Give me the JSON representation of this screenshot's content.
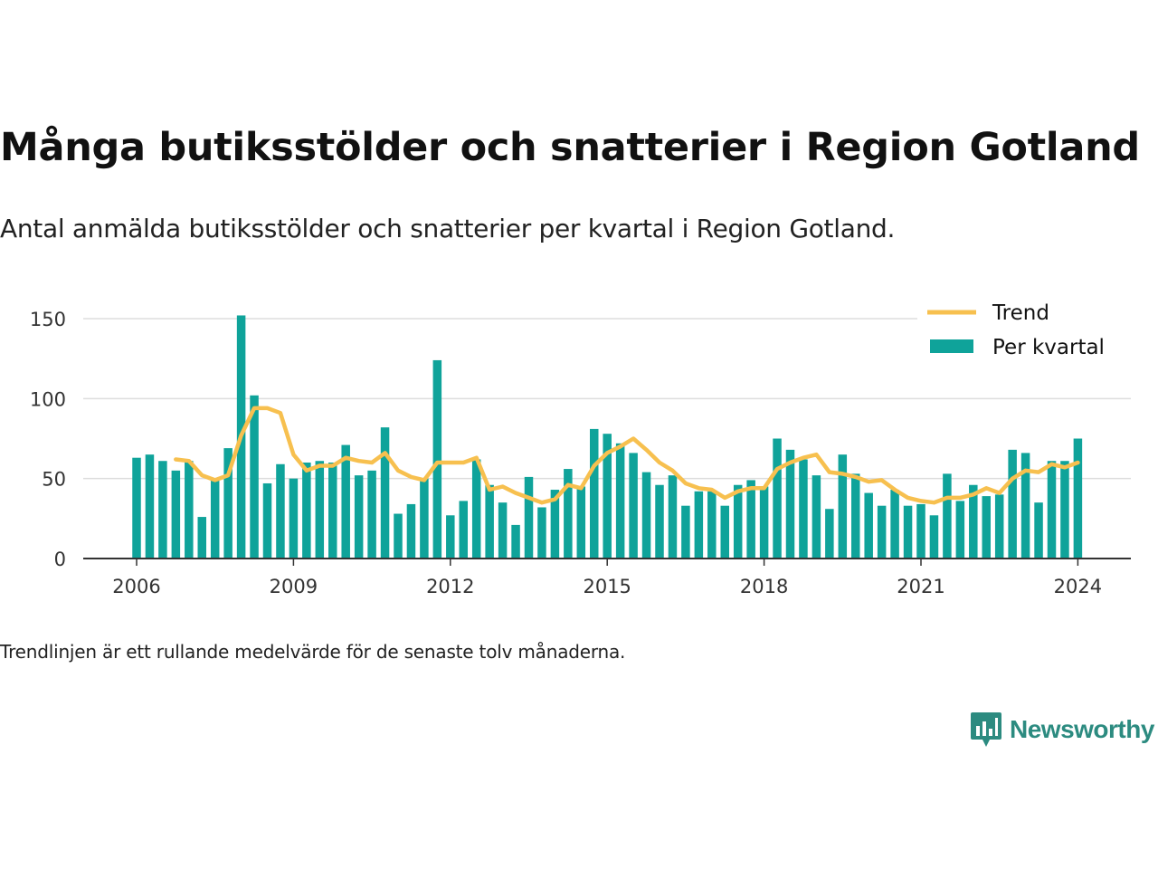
{
  "title": "Många butiksstölder och snatterier i Region Gotland",
  "subtitle": "Antal anmälda butiksstölder och snatterier per kvartal i Region Gotland.",
  "footnote": "Trendlinjen är ett rullande medelvärde för de senaste tolv månaderna.",
  "brand": {
    "name": "Newsworthy",
    "logo_icon": "newsworthy-chart-bubble-icon",
    "color": "#2c8b80"
  },
  "colors": {
    "bars": "#0fa39a",
    "trend": "#f7c04f",
    "grid": "#dddddd",
    "axis": "#333333"
  },
  "chart_data": {
    "type": "bar",
    "x_start": {
      "year": 2006,
      "quarter": 1
    },
    "x_ticks": [
      "2006",
      "2009",
      "2012",
      "2015",
      "2018",
      "2021",
      "2024"
    ],
    "y_ticks": [
      0,
      50,
      100,
      150
    ],
    "ylim": [
      0,
      155
    ],
    "grid": true,
    "legend_position": "top-right",
    "series": [
      {
        "name": "Per kvartal",
        "type": "bar",
        "values": [
          63,
          65,
          61,
          55,
          61,
          26,
          49,
          69,
          152,
          102,
          47,
          59,
          50,
          60,
          61,
          60,
          71,
          52,
          55,
          82,
          28,
          34,
          50,
          124,
          27,
          36,
          62,
          46,
          35,
          21,
          51,
          32,
          43,
          56,
          45,
          81,
          78,
          72,
          66,
          54,
          46,
          52,
          33,
          42,
          42,
          33,
          46,
          49,
          45,
          75,
          68,
          62,
          52,
          31,
          65,
          53,
          41,
          33,
          43,
          33,
          34,
          27,
          53,
          36,
          46,
          39,
          40,
          68,
          66,
          35,
          61,
          61,
          75
        ]
      },
      {
        "name": "Trend",
        "type": "line",
        "values": [
          null,
          null,
          null,
          62,
          61,
          52,
          49,
          52,
          77,
          94,
          94,
          91,
          65,
          55,
          58,
          58,
          63,
          61,
          60,
          66,
          55,
          51,
          49,
          60,
          60,
          60,
          63,
          43,
          45,
          41,
          38,
          35,
          37,
          46,
          44,
          58,
          66,
          70,
          75,
          68,
          60,
          55,
          47,
          44,
          43,
          38,
          42,
          44,
          44,
          56,
          60,
          63,
          65,
          54,
          53,
          51,
          48,
          49,
          43,
          38,
          36,
          35,
          38,
          38,
          40,
          44,
          41,
          50,
          55,
          54,
          59,
          57,
          60
        ]
      }
    ]
  }
}
